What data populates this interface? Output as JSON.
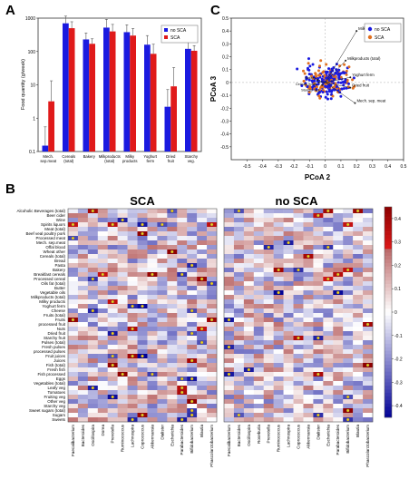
{
  "chart_data": [
    {
      "type": "bar",
      "panel_label": "A",
      "ylabel": "Food quantity (g/week)",
      "yscale": "log",
      "ylim": [
        0.1,
        1000
      ],
      "yticks": [
        "0.1",
        "1",
        "10",
        "100",
        "1000"
      ],
      "categories": [
        "Mech. sep.meat",
        "Cereals (total)",
        "Bakery",
        "Milkproducts (total)",
        "Milky products",
        "Yoghurt ferm",
        "Dried fruit",
        "Starchy veg."
      ],
      "series": [
        {
          "name": "no SCA",
          "color": "#1a1ae0",
          "values": [
            0.15,
            700,
            230,
            520,
            380,
            160,
            2.2,
            120
          ],
          "err": [
            0.4,
            450,
            130,
            400,
            250,
            140,
            5.0,
            90
          ]
        },
        {
          "name": "SCA",
          "color": "#e01a1a",
          "values": [
            3.2,
            500,
            170,
            400,
            300,
            85,
            9.0,
            105
          ],
          "err": [
            10,
            280,
            70,
            250,
            190,
            80,
            24,
            45
          ]
        }
      ]
    },
    {
      "type": "scatter",
      "panel_label": "C",
      "xlabel": "PCoA 2",
      "ylabel": "PCoA 3",
      "xlim": [
        -0.6,
        0.5
      ],
      "ylim": [
        -0.6,
        0.5
      ],
      "xticks": [
        "-0.5",
        "-0.4",
        "-0.3",
        "-0.2",
        "-0.1",
        "0",
        "0.1",
        "0.2",
        "0.3",
        "0.4",
        "0.5"
      ],
      "yticks": [
        "-0.5",
        "-0.4",
        "-0.3",
        "-0.2",
        "-0.1",
        "0",
        "0.1",
        "0.2",
        "0.3",
        "0.4",
        "0.5"
      ],
      "series": [
        {
          "name": "no SCA",
          "color": "#1a1ae0"
        },
        {
          "name": "SCA",
          "color": "#e07020"
        }
      ],
      "vectors": [
        {
          "label": "Milky products",
          "x": 0.2,
          "y": 0.4
        },
        {
          "label": "Milkproducts (total)",
          "x": 0.13,
          "y": 0.17
        },
        {
          "label": "Yoghurt ferm",
          "x": 0.16,
          "y": 0.04
        },
        {
          "label": "Dried fruit",
          "x": 0.16,
          "y": -0.04
        },
        {
          "label": "Mech. sep. meat",
          "x": 0.19,
          "y": -0.16
        },
        {
          "label": "Bakery",
          "x": -0.05,
          "y": 0.02
        },
        {
          "label": "Cereals (total)",
          "x": -0.04,
          "y": 0.0
        },
        {
          "label": "Starchy veg.",
          "x": -0.02,
          "y": -0.02
        }
      ]
    },
    {
      "type": "heatmap",
      "panel_label": "B",
      "colorbar": {
        "min": -0.45,
        "max": 0.45,
        "ticks": [
          "0.4",
          "0.3",
          "0.2",
          "0.1",
          "0",
          "-0.1",
          "-0.2",
          "-0.3",
          "-0.4"
        ]
      },
      "rows": [
        "Alcoholic Beverages (total)",
        "Beer cider",
        "Wine",
        "Spirits liquors",
        "Meat (total)",
        "Beef veal poultry pork",
        "Processed meat",
        "Mech. sep.meat",
        "Offal blood",
        "Wheat other",
        "Cereals (total)",
        "Bread",
        "Pasta",
        "Bakery",
        "Breakfast cereals",
        "Processed cereal",
        "Oils fat (total)",
        "Butter",
        "Vegetable oils",
        "Milkproducts (total)",
        "Milky products",
        "Yoghurt ferm",
        "Cheese",
        "Fruits (total)",
        "Fruits",
        "processed fruit",
        "Nuts",
        "Dried fruit",
        "Starchy fruit",
        "Pulses (total)",
        "Fresh pulses",
        "processed pulses",
        "Fruit juices",
        "Juices",
        "Fish (total)",
        "Fresh fish",
        "Fish processed",
        "Eggs",
        "Vegetables (total)",
        "Leafy veg",
        "Tomatoes",
        "Fruiting veg",
        "Other veg",
        "Starchy veg",
        "Sweet sugars (total)",
        "Sugars",
        "Sweets"
      ],
      "panels": [
        {
          "title": "SCA",
          "columns": [
            "Faecalibacterium",
            "Bacteroides",
            "Oscillospira",
            "Dorea",
            "Prevotella",
            "Ruminococcus",
            "Lachnospira",
            "Coprococcus",
            "Akkermansia",
            "Dialister",
            "Escherichia",
            "Parabacteroides",
            "Bifidobacterium",
            "Blautia",
            "Phascolarctobacterium"
          ]
        },
        {
          "title": "no SCA",
          "columns": [
            "Faecalibacterium",
            "Bacteroides",
            "Oscillospira",
            "Roseburia",
            "Prevotella",
            "Ruminococcus",
            "Lachnospira",
            "Coprococcus",
            "Akkermansia",
            "Dialister",
            "Escherichia",
            "Parabacteroides",
            "Bifidobacterium",
            "Blautia",
            "Phascolarctobacterium"
          ]
        }
      ]
    }
  ]
}
